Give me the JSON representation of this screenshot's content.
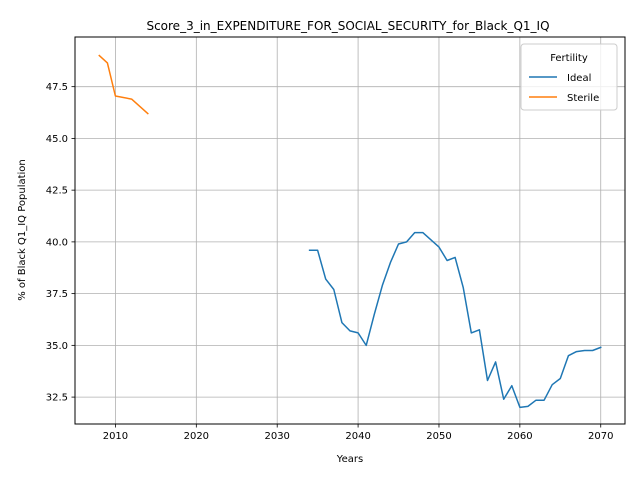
{
  "chart_data": {
    "type": "line",
    "title": "Score_3_in_EXPENDITURE_FOR_SOCIAL_SECURITY_for_Black_Q1_IQ",
    "xlabel": "Years",
    "ylabel": "% of Black Q1_IQ Population",
    "xlim": [
      2005,
      2073
    ],
    "ylim": [
      31.2,
      49.9
    ],
    "grid": true,
    "legend": {
      "title": "Fertility",
      "placement": "top-right"
    },
    "x_ticks": [
      "2010",
      "2020",
      "2030",
      "2040",
      "2050",
      "2060",
      "2070"
    ],
    "x_tick_values": [
      2010,
      2020,
      2030,
      2040,
      2050,
      2060,
      2070
    ],
    "y_ticks": [
      "32.5",
      "35.0",
      "37.5",
      "40.0",
      "42.5",
      "45.0",
      "47.5"
    ],
    "y_tick_values": [
      32.5,
      35.0,
      37.5,
      40.0,
      42.5,
      45.0,
      47.5
    ],
    "series": [
      {
        "name": "Ideal",
        "color": "#1f77b4",
        "x": [
          2034,
          2035,
          2036,
          2037,
          2038,
          2039,
          2040,
          2041,
          2042,
          2043,
          2044,
          2045,
          2046,
          2047,
          2048,
          2049,
          2050,
          2051,
          2052,
          2053,
          2054,
          2055,
          2056,
          2057,
          2058,
          2059,
          2060,
          2061,
          2062,
          2063,
          2064,
          2065,
          2066,
          2067,
          2068,
          2069,
          2070
        ],
        "y": [
          39.6,
          39.6,
          38.2,
          37.7,
          36.1,
          35.7,
          35.6,
          35.0,
          36.5,
          37.9,
          39.0,
          39.9,
          40.0,
          40.45,
          40.45,
          40.1,
          39.75,
          39.1,
          39.25,
          37.8,
          35.6,
          35.75,
          33.3,
          34.2,
          32.4,
          33.05,
          32.0,
          32.05,
          32.35,
          32.35,
          33.1,
          33.4,
          34.5,
          34.7,
          34.75,
          34.75,
          34.9
        ]
      },
      {
        "name": "Sterile",
        "color": "#ff7f0e",
        "x": [
          2008,
          2009,
          2010,
          2012,
          2014
        ],
        "y": [
          49.0,
          48.65,
          47.05,
          46.9,
          46.2
        ]
      }
    ]
  }
}
